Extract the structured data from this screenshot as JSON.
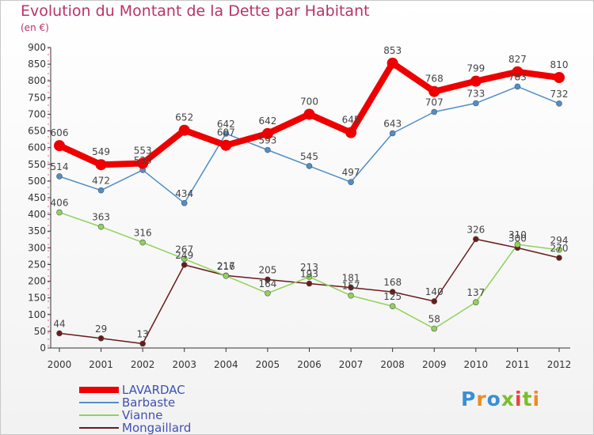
{
  "header": {
    "title": "Evolution du Montant de la Dette par Habitant",
    "subtitle": "(en €)"
  },
  "brand": {
    "logo_text": "Proxiti",
    "letter_colors": [
      "#3a8fd6",
      "#f08a24",
      "#3a8fd6",
      "#7cbd2a",
      "#e84040",
      "#7cbd2a",
      "#f08a24"
    ]
  },
  "chart_data": {
    "type": "line",
    "title": "Evolution du Montant de la Dette par Habitant",
    "subtitle": "(en €)",
    "xlabel": "",
    "ylabel": "",
    "categories": [
      "2000",
      "2001",
      "2002",
      "2003",
      "2004",
      "2005",
      "2006",
      "2007",
      "2008",
      "2009",
      "2010",
      "2011",
      "2012"
    ],
    "ylim": [
      0,
      900
    ],
    "yticks": [
      0,
      50,
      100,
      150,
      200,
      250,
      300,
      350,
      400,
      450,
      500,
      550,
      600,
      650,
      700,
      750,
      800,
      850,
      900
    ],
    "grid": false,
    "legend_position": "bottom-left",
    "series": [
      {
        "name": "LAVARDAC",
        "color": "#ee0000",
        "values": [
          606,
          549,
          553,
          652,
          607,
          642,
          700,
          645,
          853,
          768,
          799,
          827,
          810
        ]
      },
      {
        "name": "Barbaste",
        "color": "#4f8ec9",
        "values": [
          514,
          472,
          533,
          434,
          642,
          593,
          545,
          497,
          643,
          707,
          733,
          783,
          732
        ]
      },
      {
        "name": "Vianne",
        "color": "#8fd35a",
        "values": [
          406,
          363,
          316,
          267,
          216,
          164,
          213,
          157,
          125,
          58,
          137,
          310,
          294
        ]
      },
      {
        "name": "Mongaillard",
        "color": "#6b1a1a",
        "values": [
          44,
          29,
          13,
          249,
          217,
          205,
          193,
          181,
          168,
          140,
          326,
          300,
          270
        ]
      }
    ]
  }
}
